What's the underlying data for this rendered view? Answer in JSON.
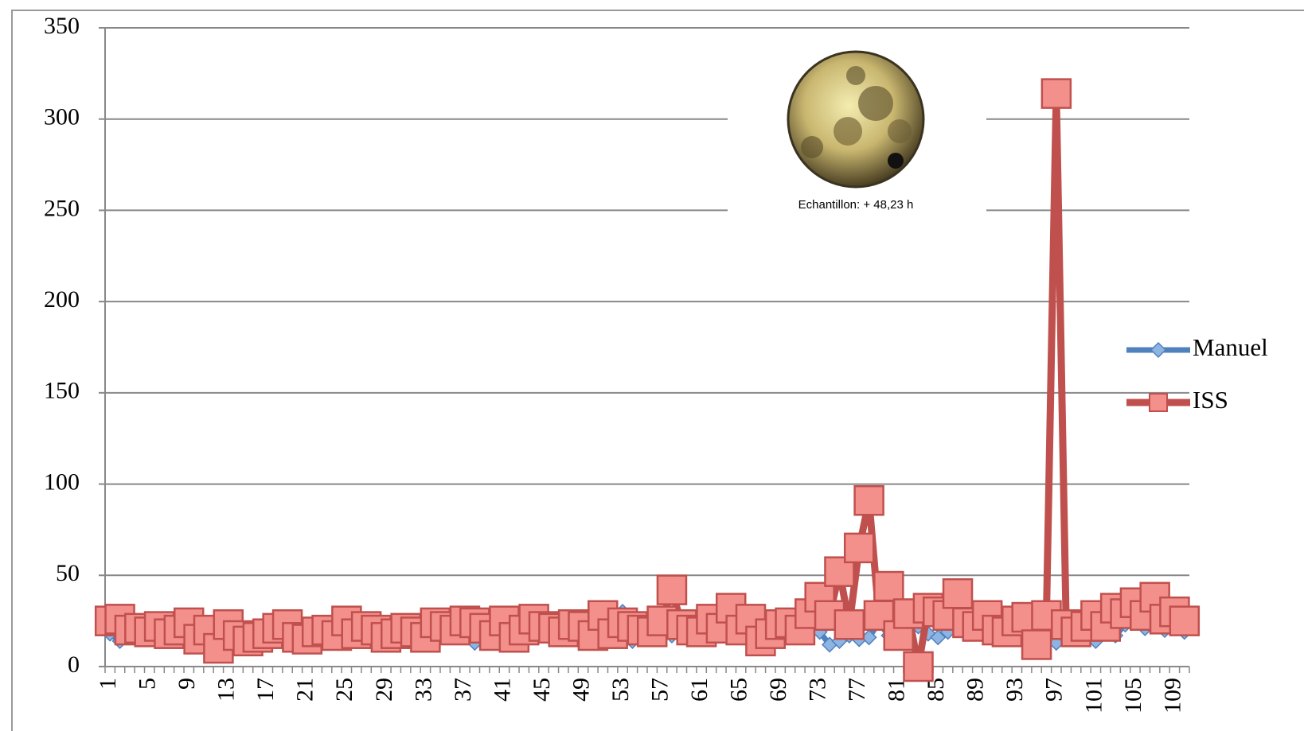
{
  "chart_data": {
    "type": "line",
    "categories": [
      "1",
      null,
      null,
      null,
      "5",
      null,
      null,
      null,
      "9",
      null,
      null,
      null,
      "13",
      null,
      null,
      null,
      "17",
      null,
      null,
      null,
      "21",
      null,
      null,
      null,
      "25",
      null,
      null,
      null,
      "29",
      null,
      null,
      null,
      "33",
      null,
      null,
      null,
      "37",
      null,
      null,
      null,
      "41",
      null,
      null,
      null,
      "45",
      null,
      null,
      null,
      "49",
      null,
      null,
      null,
      "53",
      null,
      null,
      null,
      "57",
      null,
      null,
      null,
      "61",
      null,
      null,
      null,
      "65",
      null,
      null,
      null,
      "69",
      null,
      null,
      null,
      "73",
      null,
      null,
      null,
      "77",
      null,
      null,
      null,
      "81",
      null,
      null,
      null,
      "85",
      null,
      null,
      null,
      "89",
      null,
      null,
      null,
      "93",
      null,
      null,
      null,
      "97",
      null,
      null,
      null,
      "101",
      null,
      null,
      null,
      "105",
      null,
      null,
      null,
      "109",
      null
    ],
    "series": [
      {
        "name": "Manuel",
        "color": "#4f81bd",
        "values": [
          18,
          14,
          24,
          20,
          16,
          18,
          15,
          19,
          28,
          12,
          17,
          15,
          19,
          14,
          12,
          15,
          16,
          18,
          20,
          14,
          16,
          22,
          18,
          15,
          17,
          14,
          19,
          16,
          15,
          18,
          24,
          17,
          15,
          20,
          22,
          18,
          16,
          13,
          19,
          27,
          18,
          15,
          20,
          22,
          17,
          19,
          16,
          15,
          20,
          14,
          18,
          20,
          30,
          14,
          26,
          18,
          22,
          17,
          20,
          16,
          27,
          18,
          20,
          22,
          19,
          24,
          17,
          16,
          21,
          20,
          18,
          22,
          19,
          12,
          14,
          17,
          15,
          16,
          24,
          17,
          20,
          25,
          22,
          18,
          16,
          19,
          22,
          20,
          21,
          18,
          19,
          17,
          22,
          20,
          18,
          23,
          13,
          19,
          15,
          17,
          14,
          20,
          17,
          23,
          25,
          21,
          24,
          20,
          22,
          19
        ]
      },
      {
        "name": "ISS",
        "color": "#c0504d",
        "values": [
          25,
          26,
          20,
          21,
          19,
          22,
          18,
          20,
          24,
          15,
          20,
          10,
          23,
          17,
          14,
          16,
          18,
          21,
          23,
          16,
          15,
          19,
          20,
          17,
          25,
          18,
          22,
          20,
          16,
          18,
          21,
          19,
          16,
          24,
          22,
          20,
          25,
          24,
          21,
          17,
          25,
          16,
          20,
          26,
          22,
          21,
          19,
          23,
          22,
          17,
          28,
          18,
          24,
          22,
          20,
          19,
          25,
          42,
          23,
          20,
          19,
          26,
          21,
          32,
          20,
          26,
          14,
          18,
          23,
          24,
          20,
          29,
          38,
          28,
          52,
          23,
          65,
          91,
          28,
          44,
          17,
          29,
          0,
          32,
          30,
          28,
          40,
          24,
          22,
          28,
          20,
          19,
          25,
          27,
          12,
          28,
          314,
          23,
          19,
          22,
          28,
          22,
          32,
          29,
          35,
          28,
          38,
          26,
          30,
          25
        ]
      }
    ],
    "ylim": [
      0,
      350
    ],
    "yticks": [
      0,
      50,
      100,
      150,
      200,
      250,
      300,
      350
    ],
    "grid": true,
    "legend": "right",
    "annotation": "Echantillon:  + 48,23 h"
  }
}
